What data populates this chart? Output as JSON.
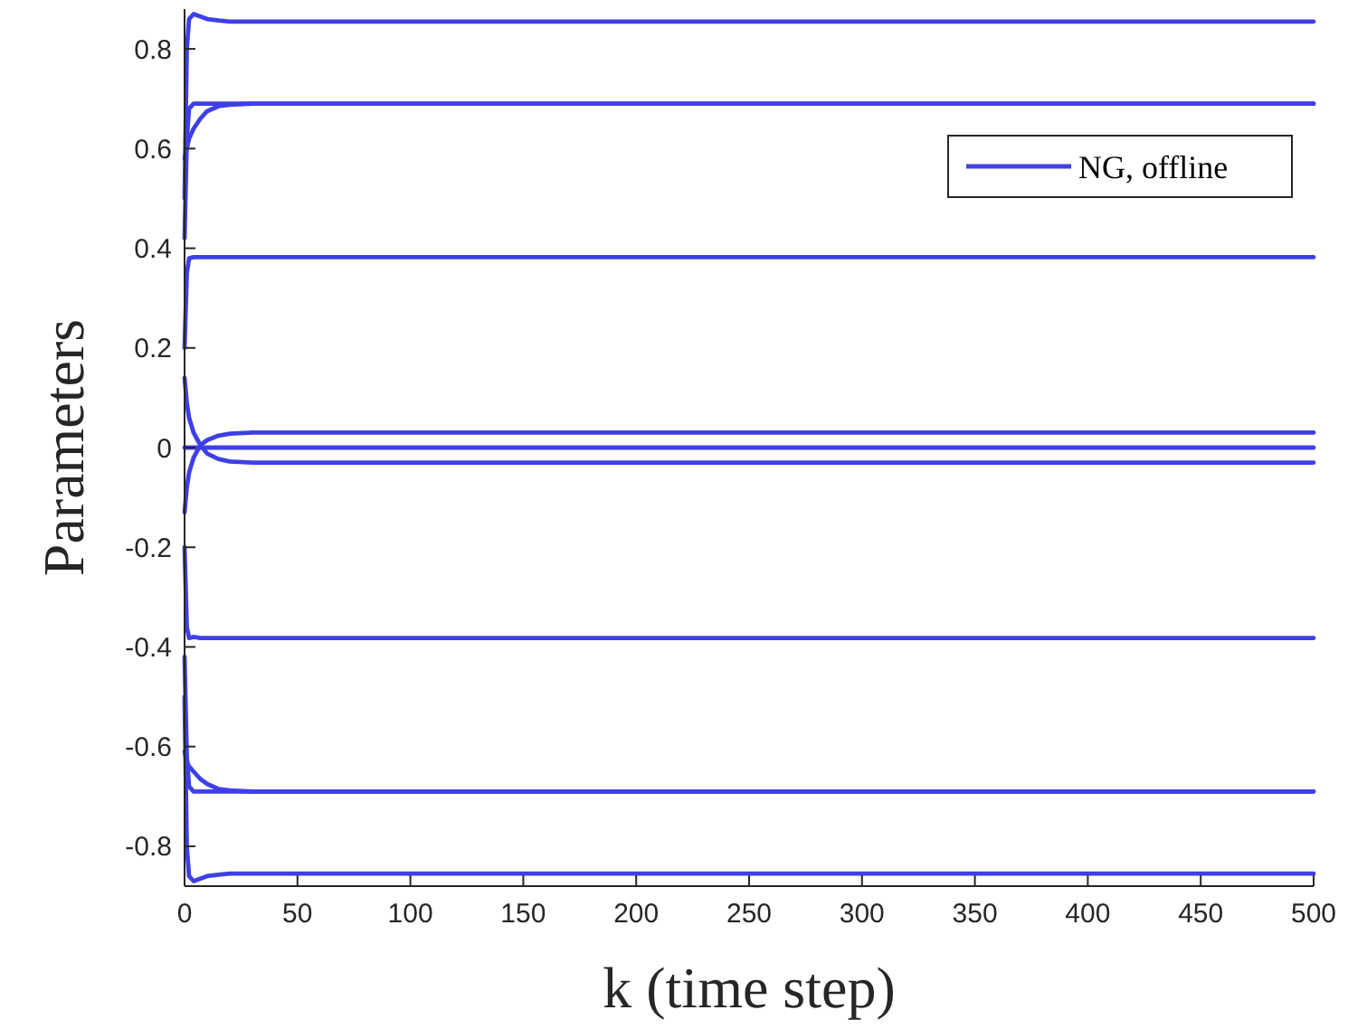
{
  "chart_data": {
    "type": "line",
    "xlabel": "k (time step)",
    "ylabel": "Parameters",
    "xlim": [
      0,
      500
    ],
    "ylim": [
      -0.88,
      0.88
    ],
    "xticks": [
      0,
      50,
      100,
      150,
      200,
      250,
      300,
      350,
      400,
      450,
      500
    ],
    "yticks": [
      -0.8,
      -0.6,
      -0.4,
      -0.2,
      0,
      0.2,
      0.4,
      0.6,
      0.8
    ],
    "grid": false,
    "legend": "top right",
    "marker": "none",
    "line_style": "solid",
    "x": [
      0,
      1,
      2,
      4,
      7,
      10,
      15,
      20,
      30,
      50,
      500
    ],
    "series": [
      {
        "name": "NG, offline",
        "color": "#3f3fe6",
        "values": [
          0.5,
          0.8,
          0.86,
          0.87,
          0.865,
          0.86,
          0.857,
          0.855,
          0.855,
          0.855,
          0.855
        ]
      },
      {
        "color": "#3f3fe6",
        "values": [
          0.42,
          0.62,
          0.68,
          0.69,
          0.69,
          0.69,
          0.69,
          0.69,
          0.69,
          0.69,
          0.69
        ]
      },
      {
        "color": "#3f3fe6",
        "values": [
          0.58,
          0.6,
          0.62,
          0.64,
          0.66,
          0.675,
          0.685,
          0.688,
          0.69,
          0.69,
          0.69
        ]
      },
      {
        "color": "#3f3fe6",
        "values": [
          0.2,
          0.35,
          0.38,
          0.382,
          0.382,
          0.382,
          0.382,
          0.382,
          0.382,
          0.382,
          0.382
        ]
      },
      {
        "color": "#3f3fe6",
        "values": [
          -0.13,
          -0.08,
          -0.05,
          -0.02,
          0.005,
          0.015,
          0.024,
          0.028,
          0.03,
          0.03,
          0.03
        ]
      },
      {
        "color": "#3f3fe6",
        "values": [
          0,
          0,
          0,
          0,
          0,
          0,
          0,
          0,
          0,
          0,
          0
        ]
      },
      {
        "color": "#3f3fe6",
        "values": [
          0.14,
          0.09,
          0.06,
          0.03,
          0.005,
          -0.012,
          -0.023,
          -0.028,
          -0.03,
          -0.03,
          -0.03
        ]
      },
      {
        "color": "#3f3fe6",
        "values": [
          -0.2,
          -0.36,
          -0.382,
          -0.38,
          -0.382,
          -0.382,
          -0.382,
          -0.382,
          -0.382,
          -0.382,
          -0.382
        ]
      },
      {
        "color": "#3f3fe6",
        "values": [
          -0.42,
          -0.62,
          -0.68,
          -0.69,
          -0.69,
          -0.69,
          -0.69,
          -0.69,
          -0.69,
          -0.69,
          -0.69
        ]
      },
      {
        "color": "#3f3fe6",
        "values": [
          -0.61,
          -0.63,
          -0.64,
          -0.65,
          -0.665,
          -0.675,
          -0.685,
          -0.688,
          -0.69,
          -0.69,
          -0.69
        ]
      },
      {
        "color": "#3f3fe6",
        "values": [
          -0.5,
          -0.8,
          -0.86,
          -0.87,
          -0.865,
          -0.86,
          -0.857,
          -0.855,
          -0.855,
          -0.855,
          -0.855
        ]
      }
    ]
  }
}
